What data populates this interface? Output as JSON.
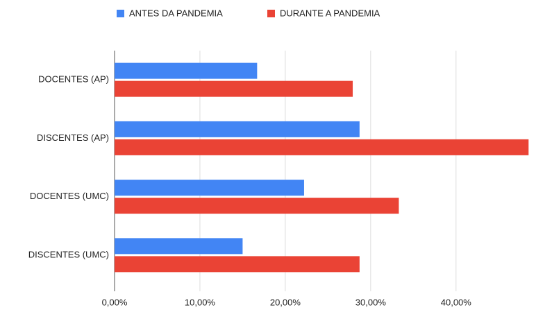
{
  "chart_data": {
    "type": "hbar",
    "categories": [
      "DOCENTES (AP)",
      "DISCENTES (AP)",
      "DOCENTES (UMC)",
      "DISCENTES (UMC)"
    ],
    "series": [
      {
        "name": "ANTES DA PANDEMIA",
        "color": "#4285f4",
        "values": [
          16.7,
          28.7,
          22.2,
          15.0
        ]
      },
      {
        "name": "DURANTE A PANDEMIA",
        "color": "#ea4335",
        "values": [
          27.9,
          48.5,
          33.3,
          28.7
        ]
      }
    ],
    "xlim": [
      0,
      48.8
    ],
    "xticks": [
      {
        "value": 0,
        "label": "0,00%"
      },
      {
        "value": 10,
        "label": "10,00%"
      },
      {
        "value": 20,
        "label": "20,00%"
      },
      {
        "value": 30,
        "label": "30,00%"
      },
      {
        "value": 40,
        "label": "40,00%"
      }
    ],
    "grid": true,
    "legend": "top"
  }
}
